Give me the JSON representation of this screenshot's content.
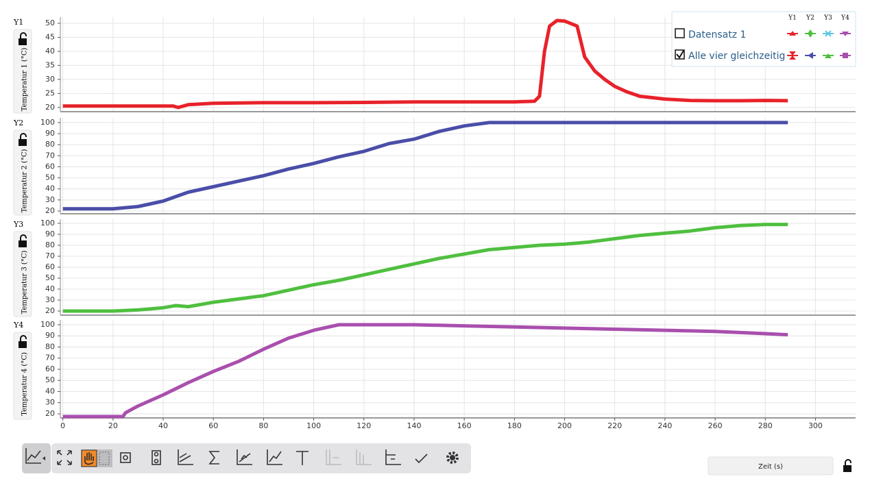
{
  "chart_data": [
    {
      "type": "line",
      "panel_label": "Y1",
      "ylabel": "Temperatur 1 (°C)",
      "x": [
        0,
        10,
        20,
        30,
        40,
        44,
        46,
        50,
        60,
        80,
        100,
        120,
        140,
        160,
        180,
        188,
        190,
        192,
        194,
        197,
        200,
        205,
        208,
        212,
        216,
        220,
        225,
        230,
        240,
        250,
        260,
        270,
        280,
        289
      ],
      "series": [
        {
          "color": "#e8222a",
          "values": [
            20.5,
            20.5,
            20.5,
            20.5,
            20.5,
            20.5,
            20,
            21,
            21.5,
            21.7,
            21.7,
            21.8,
            22,
            22,
            22,
            22.2,
            24,
            40,
            49,
            51,
            50.8,
            49,
            38,
            33,
            30,
            27.5,
            25.5,
            24,
            23,
            22.5,
            22.4,
            22.4,
            22.5,
            22.4
          ]
        }
      ],
      "xlim": [
        -1,
        316
      ],
      "ylim": [
        18.5,
        52.2
      ],
      "yticks": [
        20,
        25,
        30,
        35,
        40,
        45,
        50
      ],
      "grid": true
    },
    {
      "type": "line",
      "panel_label": "Y2",
      "ylabel": "Temperatur 2 (°C)",
      "x": [
        0,
        10,
        20,
        30,
        40,
        50,
        60,
        70,
        80,
        90,
        100,
        110,
        120,
        130,
        140,
        150,
        160,
        170,
        180,
        200,
        220,
        240,
        260,
        280,
        289
      ],
      "series": [
        {
          "color": "#4a4ea8",
          "values": [
            22,
            22,
            22,
            24,
            29,
            37,
            42,
            47,
            52,
            58,
            63,
            69,
            74,
            81,
            85,
            92,
            97,
            100,
            100,
            100,
            100,
            100,
            100,
            100,
            100
          ]
        }
      ],
      "xlim": [
        -1,
        316
      ],
      "ylim": [
        17.5,
        104.3
      ],
      "yticks": [
        20,
        30,
        40,
        50,
        60,
        70,
        80,
        90,
        100
      ],
      "grid": true
    },
    {
      "type": "line",
      "panel_label": "Y3",
      "ylabel": "Temperatur 3 (°C)",
      "x": [
        0,
        20,
        30,
        40,
        45,
        50,
        60,
        70,
        80,
        90,
        100,
        110,
        120,
        130,
        140,
        150,
        160,
        170,
        180,
        190,
        200,
        210,
        220,
        230,
        240,
        250,
        260,
        270,
        280,
        289
      ],
      "series": [
        {
          "color": "#4fbf3f",
          "values": [
            20,
            20,
            21,
            23,
            25,
            24,
            28,
            31,
            34,
            39,
            44,
            48,
            53,
            58,
            63,
            68,
            72,
            76,
            78,
            80,
            81,
            83,
            86,
            89,
            91,
            93,
            96,
            98,
            99,
            99
          ]
        }
      ],
      "xlim": [
        -1,
        316
      ],
      "ylim": [
        16.25,
        103.75
      ],
      "yticks": [
        20,
        30,
        40,
        50,
        60,
        70,
        80,
        90,
        100
      ],
      "grid": true
    },
    {
      "type": "line",
      "panel_label": "Y4",
      "ylabel": "Temperatur 4 (°C)",
      "x": [
        0,
        10,
        20,
        24,
        25,
        30,
        40,
        50,
        60,
        70,
        80,
        90,
        100,
        110,
        120,
        140,
        160,
        180,
        200,
        220,
        240,
        260,
        280,
        289
      ],
      "series": [
        {
          "color": "#a94fae",
          "values": [
            17.5,
            17.5,
            17.5,
            17.5,
            21,
            27,
            37,
            48,
            58,
            67,
            78,
            88,
            95,
            100,
            100,
            100,
            99,
            98,
            97,
            96,
            95,
            94,
            92,
            91
          ]
        }
      ],
      "xlim": [
        -1,
        316
      ],
      "ylim": [
        16.3,
        104.3
      ],
      "yticks": [
        20,
        30,
        40,
        50,
        60,
        70,
        80,
        90,
        100
      ],
      "xticks": [
        0,
        20,
        40,
        60,
        80,
        100,
        120,
        140,
        160,
        180,
        200,
        220,
        240,
        260,
        280,
        300
      ],
      "xlabel": "Zeit (s)",
      "grid": true
    }
  ],
  "legend": {
    "columns": [
      "Y1",
      "Y2",
      "Y3",
      "Y4"
    ],
    "rows": [
      "Datensatz 1",
      "Alle vier gleichzeitig"
    ]
  }
}
